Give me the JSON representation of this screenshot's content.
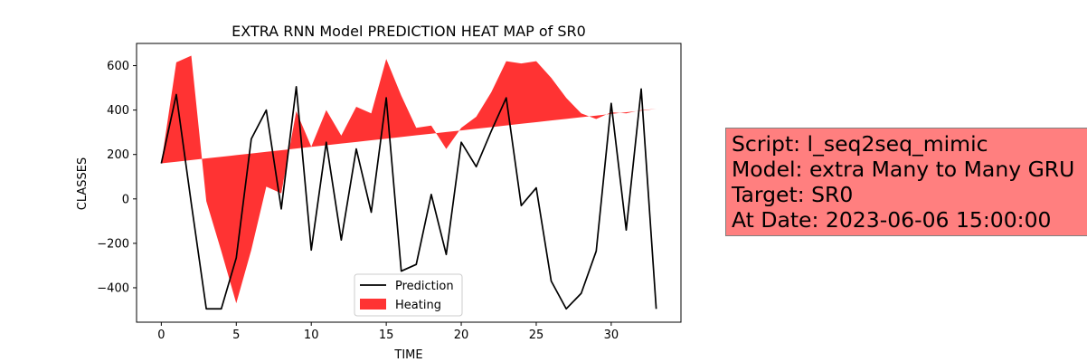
{
  "chart_data": {
    "type": "line",
    "title": "EXTRA RNN Model PREDICTION HEAT MAP of SR0",
    "xlabel": "TIME",
    "ylabel": "CLASSES",
    "xlim": [
      -1.65,
      34.65
    ],
    "ylim": [
      -555,
      700
    ],
    "xticks": [
      0,
      5,
      10,
      15,
      20,
      25,
      30
    ],
    "yticks": [
      -400,
      -200,
      0,
      200,
      400,
      600
    ],
    "legend_position": "lower-center",
    "grid": false,
    "series": [
      {
        "name": "Prediction",
        "kind": "line",
        "color": "#000000",
        "x": [
          0,
          1,
          2,
          3,
          4,
          5,
          6,
          7,
          8,
          9,
          10,
          11,
          12,
          13,
          14,
          15,
          16,
          17,
          18,
          19,
          20,
          21,
          22,
          23,
          24,
          25,
          26,
          27,
          28,
          29,
          30,
          31,
          32,
          33
        ],
        "values": [
          160,
          470,
          -20,
          -495,
          -495,
          -265,
          270,
          400,
          -45,
          505,
          -230,
          255,
          -185,
          225,
          -60,
          455,
          -325,
          -295,
          20,
          -250,
          255,
          145,
          305,
          455,
          -30,
          50,
          -370,
          -495,
          -425,
          -235,
          430,
          -140,
          495,
          -495
        ]
      },
      {
        "name": "Heating",
        "kind": "fill_between",
        "color": "#ff0000",
        "x": [
          0,
          1,
          2,
          3,
          4,
          5,
          6,
          7,
          8,
          9,
          10,
          11,
          12,
          13,
          14,
          15,
          16,
          17,
          18,
          19,
          20,
          21,
          22,
          23,
          24,
          25,
          26,
          27,
          28,
          29,
          30,
          31,
          32,
          33
        ],
        "upper": [
          160,
          615,
          645,
          null,
          null,
          null,
          null,
          null,
          null,
          395,
          235,
          400,
          285,
          415,
          385,
          630,
          465,
          320,
          330,
          225,
          320,
          370,
          480,
          620,
          610,
          620,
          545,
          455,
          385,
          360,
          390,
          385,
          400,
          405
        ],
        "lower": [
          160,
          160,
          175,
          -10,
          -235,
          -470,
          -230,
          55,
          25,
          null,
          null,
          null,
          null,
          null,
          null,
          null,
          null,
          null,
          null,
          null,
          null,
          null,
          null,
          null,
          null,
          null,
          null,
          null,
          null,
          null,
          null,
          null,
          null,
          null
        ],
        "baseline": [
          160,
          405
        ]
      }
    ]
  },
  "info_box": {
    "lines": [
      "Script: l_seq2seq_mimic",
      "Model: extra Many to Many GRU",
      "Target: SR0",
      "At Date: 2023-06-06 15:00:00"
    ]
  }
}
